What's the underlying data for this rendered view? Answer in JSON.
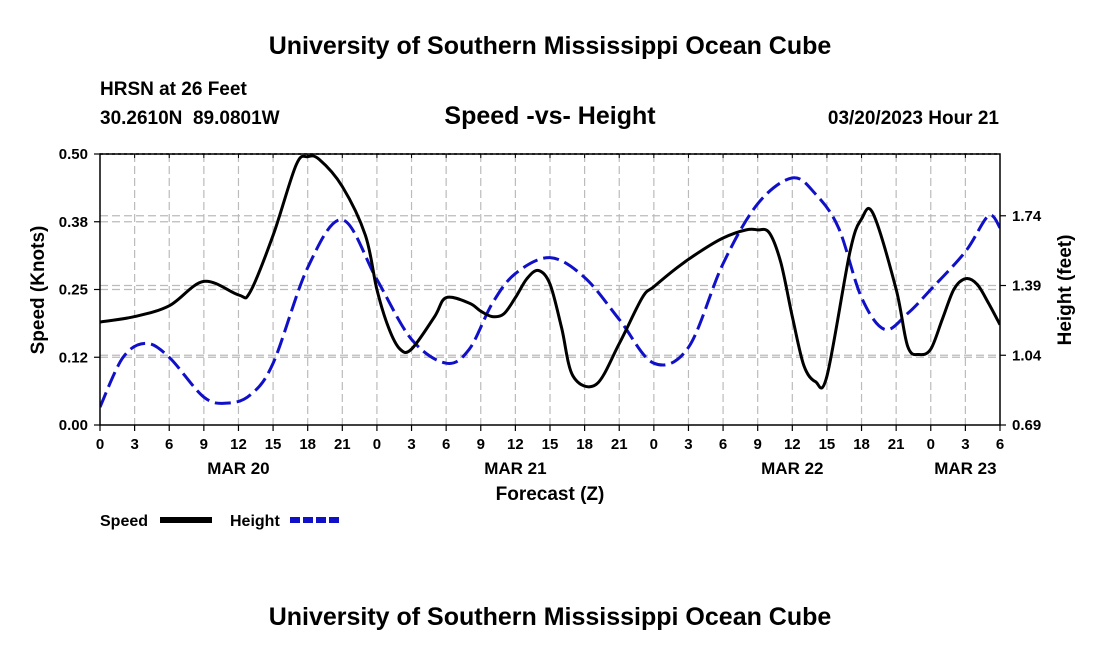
{
  "header": {
    "title": "University of Southern Mississippi Ocean Cube",
    "station": "HRSN at 26 Feet",
    "coords": "30.2610N  89.0801W",
    "subtitle": "Speed -vs- Height",
    "datetime": "03/20/2023 Hour 21",
    "footer_title": "University of Southern Mississippi Ocean Cube"
  },
  "legend": {
    "speed_label": "Speed",
    "height_label": "Height"
  },
  "colors": {
    "speed": "#000000",
    "height": "#1010c8",
    "grid": "#bbbbbb"
  },
  "chart_data": {
    "type": "line",
    "title": "Speed -vs- Height",
    "xlabel": "Forecast (Z)",
    "ylabel": "Speed (Knots)",
    "y2label": "Height (feet)",
    "xlim": [
      0,
      78
    ],
    "ylim": [
      0.0,
      0.5
    ],
    "y2lim": [
      0.69,
      2.05
    ],
    "x_ticks": [
      0,
      3,
      6,
      9,
      12,
      15,
      18,
      21,
      24,
      27,
      30,
      33,
      36,
      39,
      42,
      45,
      48,
      51,
      54,
      57,
      60,
      63,
      66,
      69,
      72,
      75,
      78
    ],
    "x_tick_labels": [
      "0",
      "3",
      "6",
      "9",
      "12",
      "15",
      "18",
      "21",
      "0",
      "3",
      "6",
      "9",
      "12",
      "15",
      "18",
      "21",
      "0",
      "3",
      "6",
      "9",
      "12",
      "15",
      "18",
      "21",
      "0",
      "3",
      "6"
    ],
    "date_labels": [
      {
        "hour": 12,
        "label": "MAR 20"
      },
      {
        "hour": 36,
        "label": "MAR 21"
      },
      {
        "hour": 60,
        "label": "MAR 22"
      },
      {
        "hour": 75,
        "label": "MAR 23"
      }
    ],
    "y_ticks": [
      0.0,
      0.125,
      0.25,
      0.375,
      0.5
    ],
    "y_tick_labels": [
      "0.00",
      "0.12",
      "0.25",
      "0.38",
      "0.50"
    ],
    "y2_ticks": [
      0.69,
      1.04,
      1.39,
      1.74
    ],
    "y2_tick_labels": [
      "0.69",
      "1.04",
      "1.39",
      "1.74"
    ],
    "series": [
      {
        "name": "Speed",
        "axis": "left",
        "x": [
          0,
          3,
          6,
          9,
          12,
          13,
          15,
          17,
          18,
          19,
          21,
          23,
          24,
          25,
          26,
          27,
          29,
          30,
          32,
          33,
          34,
          35,
          36,
          37,
          38,
          39,
          40,
          41,
          43,
          45,
          47,
          48,
          50,
          52,
          54,
          56,
          57,
          58,
          59,
          60,
          61,
          62,
          63,
          65,
          66,
          67,
          69,
          70,
          71,
          72,
          73,
          74,
          75,
          76,
          77,
          78
        ],
        "y": [
          0.19,
          0.2,
          0.22,
          0.265,
          0.24,
          0.245,
          0.35,
          0.48,
          0.495,
          0.49,
          0.44,
          0.35,
          0.25,
          0.18,
          0.14,
          0.14,
          0.2,
          0.235,
          0.225,
          0.21,
          0.2,
          0.205,
          0.235,
          0.27,
          0.285,
          0.26,
          0.18,
          0.09,
          0.075,
          0.15,
          0.235,
          0.255,
          0.29,
          0.32,
          0.345,
          0.36,
          0.36,
          0.355,
          0.3,
          0.2,
          0.11,
          0.08,
          0.09,
          0.32,
          0.38,
          0.39,
          0.25,
          0.145,
          0.13,
          0.14,
          0.195,
          0.25,
          0.27,
          0.26,
          0.225,
          0.185
        ]
      },
      {
        "name": "Height",
        "axis": "right",
        "x": [
          0,
          2,
          4,
          6,
          9,
          11,
          13,
          15,
          18,
          21,
          24,
          27,
          30,
          32,
          34,
          36,
          39,
          42,
          45,
          48,
          51,
          54,
          57,
          60,
          62,
          64,
          66,
          68,
          70,
          72,
          75,
          77,
          78
        ],
        "y": [
          0.78,
          1.03,
          1.1,
          1.03,
          0.83,
          0.8,
          0.84,
          1.0,
          1.48,
          1.72,
          1.42,
          1.12,
          1.0,
          1.07,
          1.3,
          1.45,
          1.53,
          1.43,
          1.22,
          1.0,
          1.08,
          1.5,
          1.8,
          1.93,
          1.85,
          1.68,
          1.33,
          1.17,
          1.25,
          1.37,
          1.56,
          1.74,
          1.68
        ]
      }
    ]
  }
}
